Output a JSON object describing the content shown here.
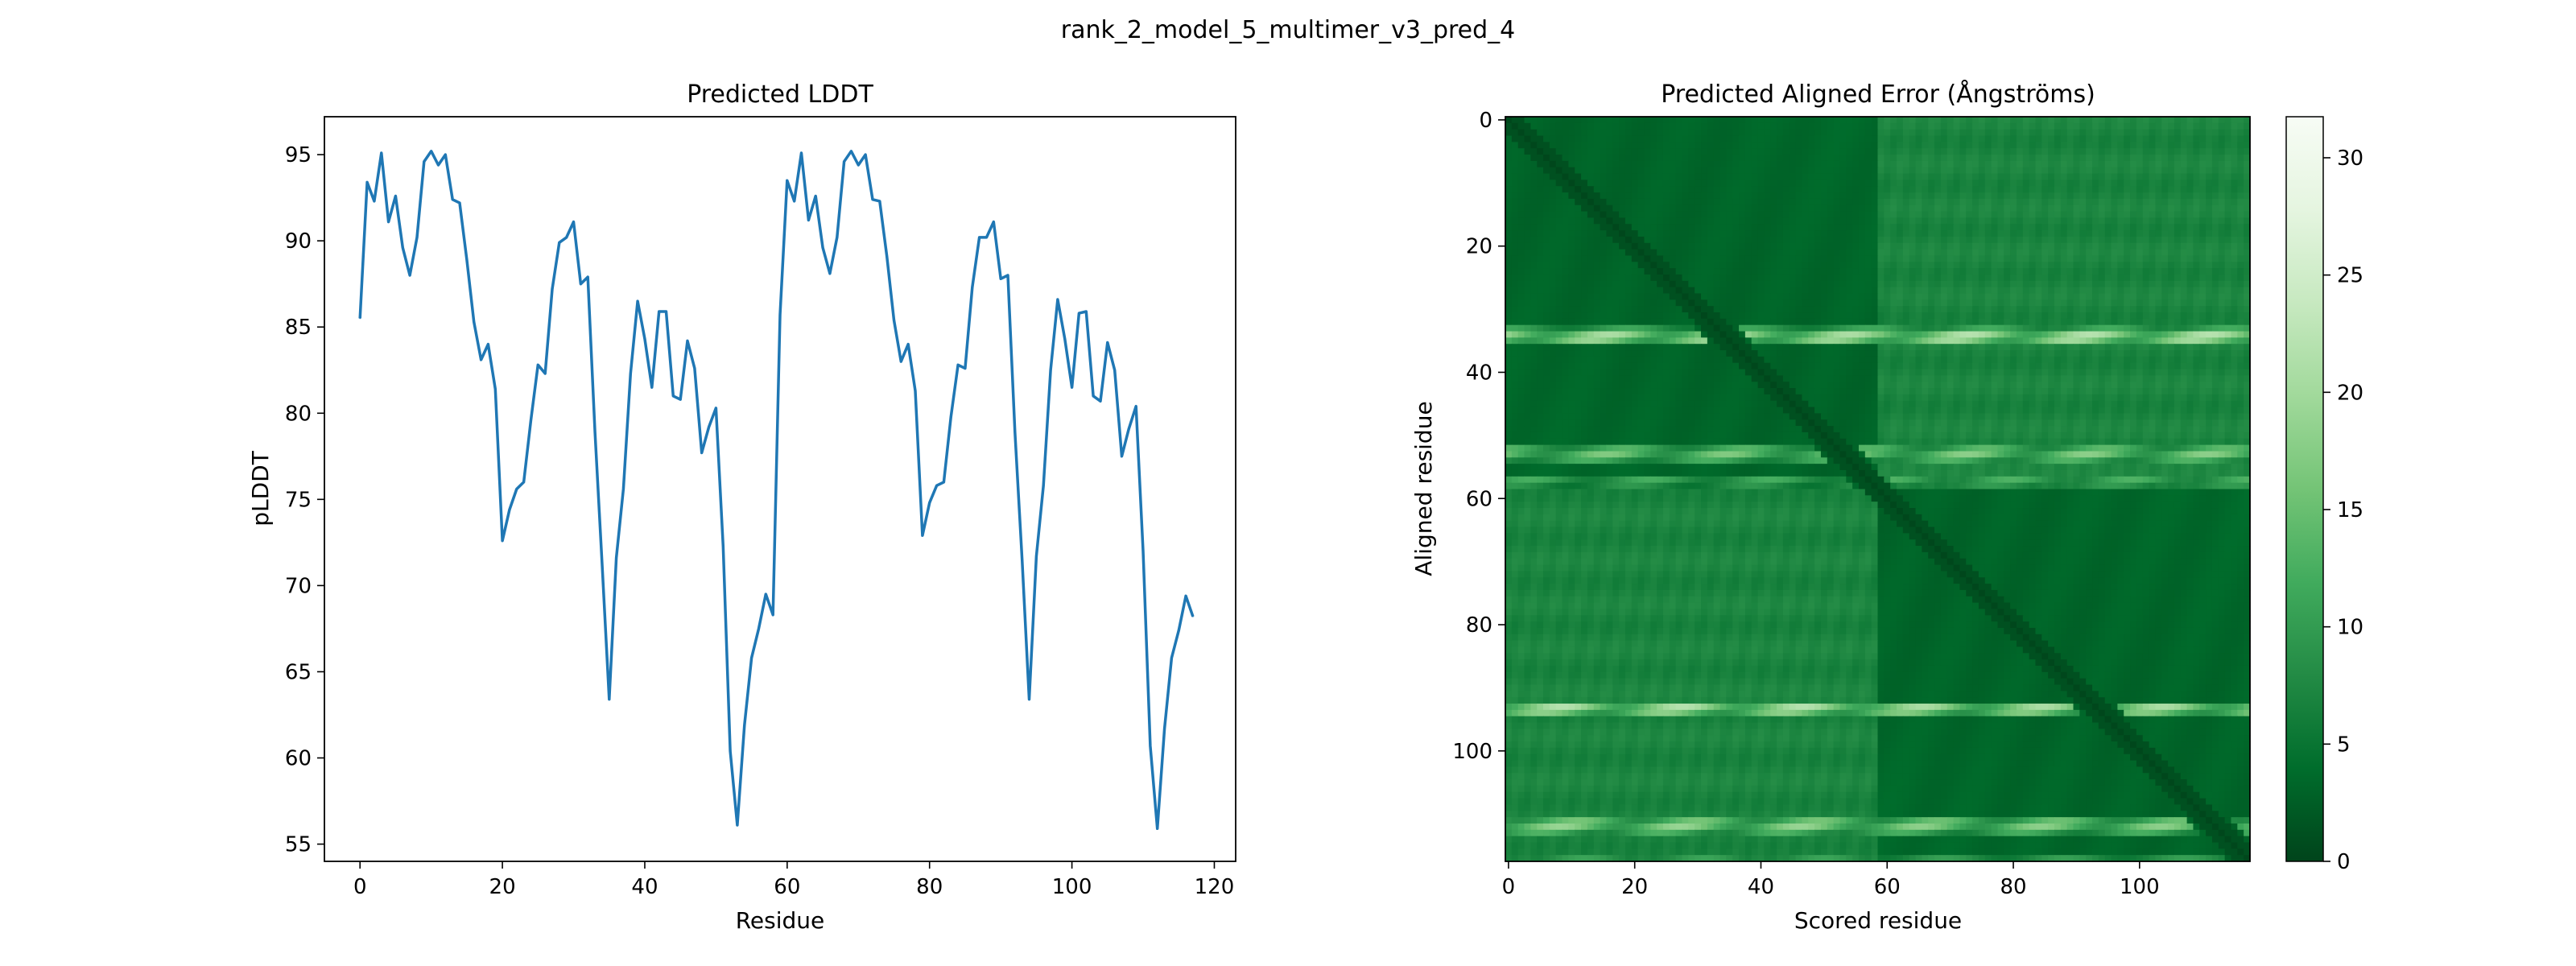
{
  "figure": {
    "title": "rank_2_model_5_multimer_v3_pred_4"
  },
  "chart_data": [
    {
      "type": "line",
      "title": "Predicted LDDT",
      "xlabel": "Residue",
      "ylabel": "pLDDT",
      "xlim": [
        -5,
        123
      ],
      "ylim": [
        54,
        97.2
      ],
      "xticks": [
        0,
        20,
        40,
        60,
        80,
        100,
        120
      ],
      "yticks": [
        55,
        60,
        65,
        70,
        75,
        80,
        85,
        90,
        95
      ],
      "grid": false,
      "series": [
        {
          "color": "#1f77b4",
          "x": [
            0,
            1,
            2,
            3,
            4,
            5,
            6,
            7,
            8,
            9,
            10,
            11,
            12,
            13,
            14,
            15,
            16,
            17,
            18,
            19,
            20,
            21,
            22,
            23,
            24,
            25,
            26,
            27,
            28,
            29,
            30,
            31,
            32,
            33,
            34,
            35,
            36,
            37,
            38,
            39,
            40,
            41,
            42,
            43,
            44,
            45,
            46,
            47,
            48,
            49,
            50,
            51,
            52,
            53,
            54,
            55,
            56,
            57,
            58,
            59,
            60,
            61,
            62,
            63,
            64,
            65,
            66,
            67,
            68,
            69,
            70,
            71,
            72,
            73,
            74,
            75,
            76,
            77,
            78,
            79,
            80,
            81,
            82,
            83,
            84,
            85,
            86,
            87,
            88,
            89,
            90,
            91,
            92,
            93,
            94,
            95,
            96,
            97,
            98,
            99,
            100,
            101,
            102,
            103,
            104,
            105,
            106,
            107,
            108,
            109,
            110,
            111,
            112,
            113,
            114,
            115,
            116,
            117
          ],
          "values": [
            85.5,
            93.4,
            92.3,
            95.1,
            91.1,
            92.6,
            89.6,
            88.0,
            90.2,
            94.6,
            95.2,
            94.4,
            95.0,
            92.4,
            92.2,
            88.9,
            85.3,
            83.1,
            84.0,
            81.4,
            72.6,
            74.4,
            75.6,
            76.0,
            79.6,
            82.8,
            82.3,
            87.2,
            89.9,
            90.2,
            91.1,
            87.5,
            87.9,
            78.9,
            71.3,
            63.4,
            71.6,
            75.6,
            82.3,
            86.5,
            84.3,
            81.5,
            85.9,
            85.9,
            81.0,
            80.8,
            84.2,
            82.6,
            77.7,
            79.2,
            80.3,
            72.3,
            60.4,
            56.1,
            61.9,
            65.8,
            67.5,
            69.5,
            68.3,
            85.7,
            93.5,
            92.3,
            95.1,
            91.2,
            92.6,
            89.6,
            88.1,
            90.2,
            94.6,
            95.2,
            94.4,
            95.0,
            92.4,
            92.3,
            89.1,
            85.4,
            83.0,
            84.0,
            81.3,
            72.9,
            74.8,
            75.8,
            76.0,
            79.8,
            82.8,
            82.6,
            87.3,
            90.2,
            90.2,
            91.1,
            87.8,
            88.0,
            78.9,
            71.5,
            63.4,
            71.7,
            75.8,
            82.5,
            86.6,
            84.3,
            81.5,
            85.8,
            85.9,
            81.0,
            80.7,
            84.1,
            82.5,
            77.5,
            79.1,
            80.4,
            72.0,
            60.7,
            55.9,
            61.7,
            65.8,
            67.4,
            69.4,
            68.2
          ]
        }
      ]
    },
    {
      "type": "heatmap",
      "title": "Predicted Aligned Error (Ångströms)",
      "xlabel": "Scored residue",
      "ylabel": "Aligned residue",
      "n": 118,
      "xticks": [
        0,
        20,
        40,
        60,
        80,
        100
      ],
      "yticks": [
        0,
        20,
        40,
        60,
        80,
        100
      ],
      "colormap": "Greens_r",
      "colorbar": {
        "min": 0,
        "max": 31.75,
        "ticks": [
          0,
          5,
          10,
          15,
          20,
          25,
          30
        ]
      },
      "chain_break": 59,
      "diagonal_value": 0.3,
      "base_values": {
        "intra_chain": 3.0,
        "inter_chain": 7.0
      },
      "high_error_rows": [
        {
          "row": 34,
          "value": 22
        },
        {
          "row": 35,
          "value": 20
        },
        {
          "row": 33,
          "value": 12
        },
        {
          "row": 52,
          "value": 14
        },
        {
          "row": 53,
          "value": 18
        },
        {
          "row": 54,
          "value": 13
        },
        {
          "row": 57,
          "value": 13
        },
        {
          "row": 58,
          "value": 10
        },
        {
          "row": 93,
          "value": 22
        },
        {
          "row": 94,
          "value": 18
        },
        {
          "row": 111,
          "value": 16
        },
        {
          "row": 112,
          "value": 19
        },
        {
          "row": 113,
          "value": 13
        },
        {
          "row": 117,
          "value": 11
        }
      ]
    }
  ]
}
